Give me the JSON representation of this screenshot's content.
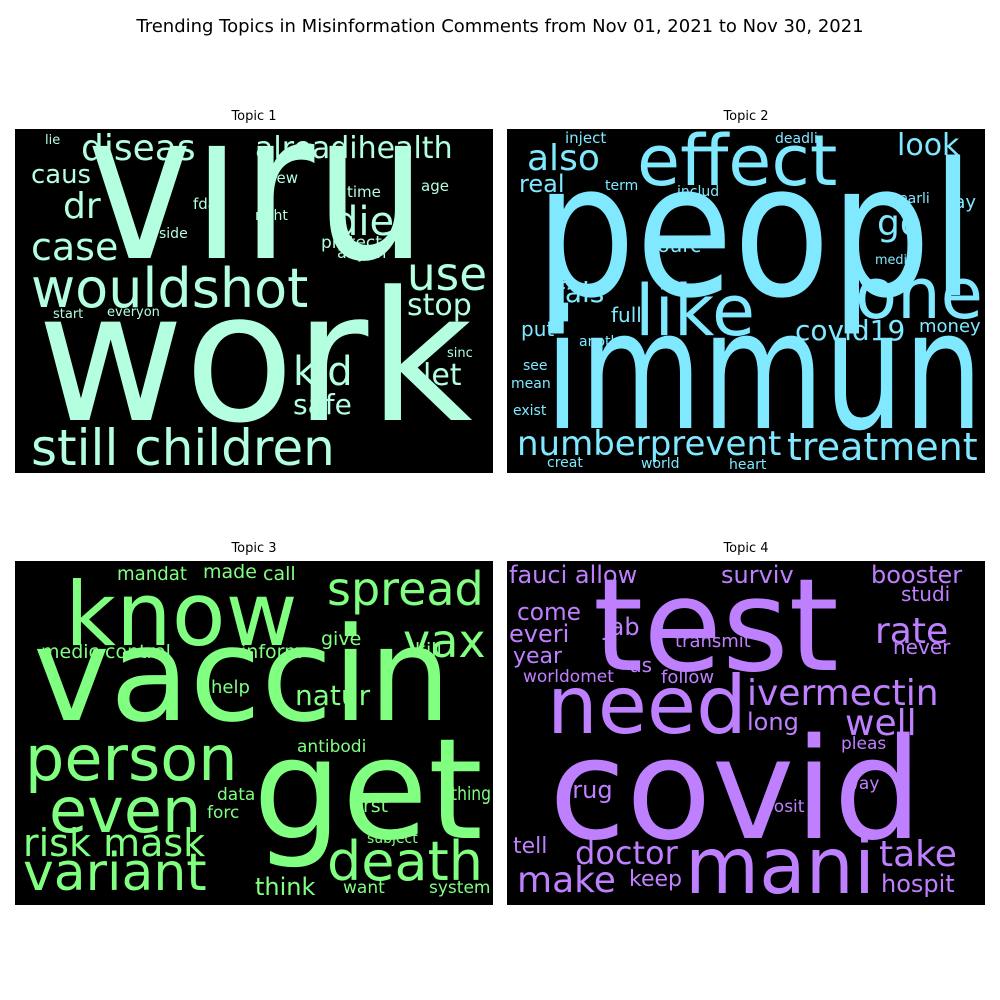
{
  "title": "Trending Topics in Misinformation Comments from Nov 01, 2021 to Nov 30, 2021",
  "chart_data": [
    {
      "type": "wordcloud",
      "title": "Topic 1",
      "color": "#b3ffe0",
      "background": "#000000",
      "words": [
        {
          "text": "viru",
          "weight": 100
        },
        {
          "text": "work",
          "weight": 98
        },
        {
          "text": "wouldshot",
          "weight": 36
        },
        {
          "text": "still children",
          "weight": 34
        },
        {
          "text": "diseas",
          "weight": 26
        },
        {
          "text": "case",
          "weight": 25
        },
        {
          "text": "use",
          "weight": 28
        },
        {
          "text": "dr",
          "weight": 24
        },
        {
          "text": "kid",
          "weight": 24
        },
        {
          "text": "alreadihealth",
          "weight": 22
        },
        {
          "text": "die",
          "weight": 24
        },
        {
          "text": "stop",
          "weight": 20
        },
        {
          "text": "safe",
          "weight": 20
        },
        {
          "text": "let",
          "weight": 20
        },
        {
          "text": "caus",
          "weight": 18
        },
        {
          "text": "protect",
          "weight": 12
        },
        {
          "text": "anyon",
          "weight": 11
        },
        {
          "text": "new",
          "weight": 10
        },
        {
          "text": "time",
          "weight": 10
        },
        {
          "text": "age",
          "weight": 10
        },
        {
          "text": "fda",
          "weight": 10
        },
        {
          "text": "right",
          "weight": 9
        },
        {
          "text": "side",
          "weight": 9
        },
        {
          "text": "sinc",
          "weight": 9
        },
        {
          "text": "lie",
          "weight": 9
        },
        {
          "text": "start",
          "weight": 8
        },
        {
          "text": "everyon",
          "weight": 8
        }
      ]
    },
    {
      "type": "wordcloud",
      "title": "Topic 2",
      "color": "#80e8ff",
      "background": "#000000",
      "words": [
        {
          "text": "peopl",
          "weight": 100
        },
        {
          "text": "immun",
          "weight": 96
        },
        {
          "text": "effect",
          "weight": 46
        },
        {
          "text": "like",
          "weight": 44
        },
        {
          "text": "one",
          "weight": 44
        },
        {
          "text": "treatment",
          "weight": 24
        },
        {
          "text": "numberprevent",
          "weight": 22
        },
        {
          "text": "also",
          "weight": 24
        },
        {
          "text": "covid19",
          "weight": 20
        },
        {
          "text": "go",
          "weight": 22
        },
        {
          "text": "look",
          "weight": 20
        },
        {
          "text": "real",
          "weight": 16
        },
        {
          "text": "fals",
          "weight": 18
        },
        {
          "text": "fulli",
          "weight": 14
        },
        {
          "text": "put",
          "weight": 14
        },
        {
          "text": "sourc",
          "weight": 14
        },
        {
          "text": "money",
          "weight": 14
        },
        {
          "text": "say",
          "weight": 14
        },
        {
          "text": "inject",
          "weight": 11
        },
        {
          "text": "deadli",
          "weight": 10
        },
        {
          "text": "term",
          "weight": 10
        },
        {
          "text": "includ",
          "weight": 10
        },
        {
          "text": "earli",
          "weight": 10
        },
        {
          "text": "media",
          "weight": 9
        },
        {
          "text": "anoth",
          "weight": 9
        },
        {
          "text": "see",
          "weight": 9
        },
        {
          "text": "mean",
          "weight": 9
        },
        {
          "text": "exist",
          "weight": 9
        },
        {
          "text": "creat",
          "weight": 9
        },
        {
          "text": "world",
          "weight": 9
        },
        {
          "text": "heart",
          "weight": 9
        }
      ]
    },
    {
      "type": "wordcloud",
      "title": "Topic 3",
      "color": "#80ff80",
      "background": "#000000",
      "words": [
        {
          "text": "vaccin",
          "weight": 100
        },
        {
          "text": "get",
          "weight": 92
        },
        {
          "text": "know",
          "weight": 64
        },
        {
          "text": "person",
          "weight": 46
        },
        {
          "text": "even",
          "weight": 46
        },
        {
          "text": "variant",
          "weight": 40
        },
        {
          "text": "death",
          "weight": 38
        },
        {
          "text": "spread",
          "weight": 36
        },
        {
          "text": "vax",
          "weight": 36
        },
        {
          "text": "risk mask",
          "weight": 30
        },
        {
          "text": "natur",
          "weight": 22
        },
        {
          "text": "think",
          "weight": 18
        },
        {
          "text": "thing",
          "weight": 14
        },
        {
          "text": "first",
          "weight": 14
        },
        {
          "text": "give",
          "weight": 14
        },
        {
          "text": "kill",
          "weight": 14
        },
        {
          "text": "medic control",
          "weight": 14
        },
        {
          "text": "inform",
          "weight": 14
        },
        {
          "text": "mandat",
          "weight": 13
        },
        {
          "text": "made",
          "weight": 13
        },
        {
          "text": "call",
          "weight": 13
        },
        {
          "text": "help",
          "weight": 13
        },
        {
          "text": "antibodi",
          "weight": 12
        },
        {
          "text": "data",
          "weight": 12
        },
        {
          "text": "forc",
          "weight": 12
        },
        {
          "text": "want",
          "weight": 12
        },
        {
          "text": "system",
          "weight": 12
        },
        {
          "text": "subject",
          "weight": 10
        }
      ]
    },
    {
      "type": "wordcloud",
      "title": "Topic 4",
      "color": "#bf80ff",
      "background": "#000000",
      "words": [
        {
          "text": "test",
          "weight": 100
        },
        {
          "text": "covid",
          "weight": 98
        },
        {
          "text": "need",
          "weight": 56
        },
        {
          "text": "mani",
          "weight": 54
        },
        {
          "text": "ivermectin",
          "weight": 26
        },
        {
          "text": "well",
          "weight": 28
        },
        {
          "text": "rate",
          "weight": 28
        },
        {
          "text": "take",
          "weight": 28
        },
        {
          "text": "make",
          "weight": 24
        },
        {
          "text": "doctor",
          "weight": 24
        },
        {
          "text": "booster",
          "weight": 18
        },
        {
          "text": "fauci allow",
          "weight": 18
        },
        {
          "text": "surviv",
          "weight": 18
        },
        {
          "text": "jab",
          "weight": 18
        },
        {
          "text": "long",
          "weight": 18
        },
        {
          "text": "drug",
          "weight": 18
        },
        {
          "text": "hospit",
          "weight": 18
        },
        {
          "text": "come",
          "weight": 18
        },
        {
          "text": "everi",
          "weight": 18
        },
        {
          "text": "year",
          "weight": 18
        },
        {
          "text": "tell",
          "weight": 18
        },
        {
          "text": "keep",
          "weight": 18
        },
        {
          "text": "us",
          "weight": 16
        },
        {
          "text": "studi",
          "weight": 16
        },
        {
          "text": "never",
          "weight": 16
        },
        {
          "text": "transmit",
          "weight": 14
        },
        {
          "text": "follow",
          "weight": 14
        },
        {
          "text": "worldomet",
          "weight": 14
        },
        {
          "text": "pleas",
          "weight": 12
        },
        {
          "text": "way",
          "weight": 12
        },
        {
          "text": "posit",
          "weight": 14
        }
      ]
    }
  ]
}
